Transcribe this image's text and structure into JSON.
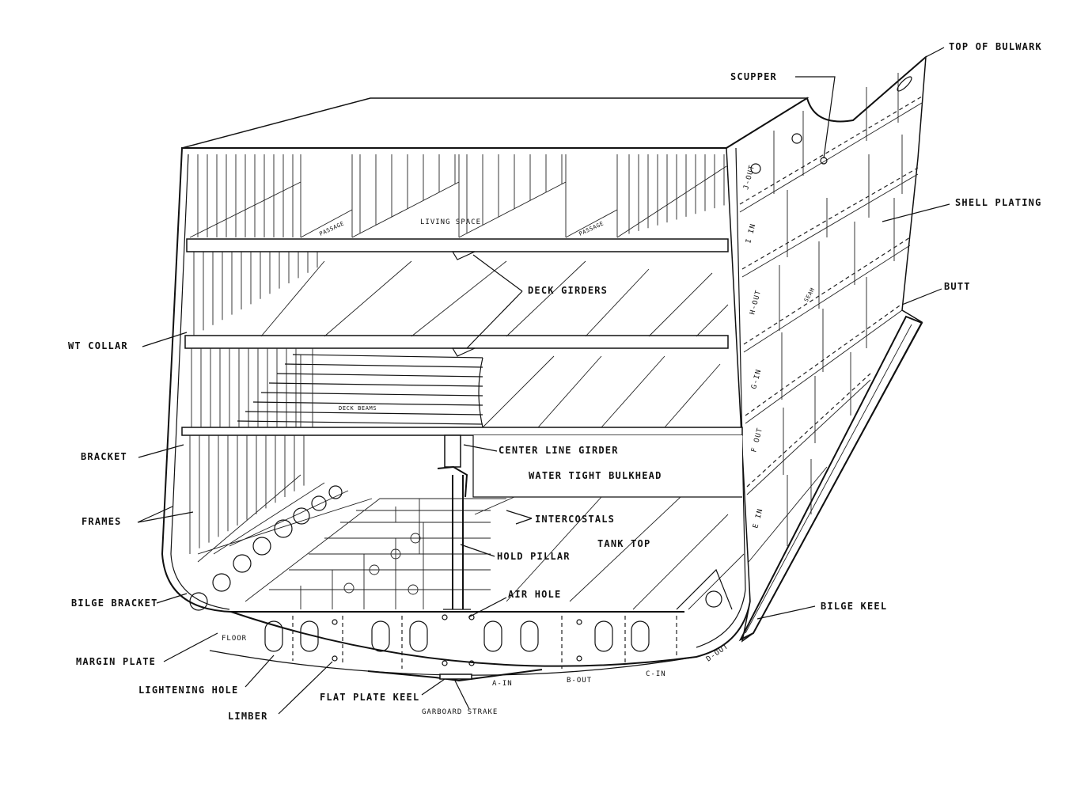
{
  "labels": {
    "top_of_bulwark": "TOP OF BULWARK",
    "scupper": "SCUPPER",
    "shell_plating": "SHELL PLATING",
    "butt": "BUTT",
    "deck_girders": "DECK GIRDERS",
    "wt_collar": "WT COLLAR",
    "bracket": "BRACKET",
    "center_line_girder": "CENTER LINE GIRDER",
    "water_tight_bulkhead": "WATER TIGHT BULKHEAD",
    "frames": "FRAMES",
    "intercostals": "INTERCOSTALS",
    "tank_top": "TANK TOP",
    "hold_pillar": "HOLD PILLAR",
    "air_hole": "AIR HOLE",
    "bilge_bracket": "BILGE BRACKET",
    "bilge_keel": "BILGE KEEL",
    "floor": "FLOOR",
    "margin_plate": "MARGIN PLATE",
    "lightening_hole": "LIGHTENING HOLE",
    "limber": "LIMBER",
    "flat_plate_keel": "FLAT PLATE KEEL",
    "garboard_strake": "GARBOARD STRAKE",
    "living_space": "LIVING SPACE",
    "deck_beams": "DECK BEAMS",
    "passage_left": "PASSAGE",
    "passage_right": "PASSAGE",
    "seam": "SEAM"
  },
  "strakes": {
    "a_in": "A-IN",
    "b_out": "B-OUT",
    "c_in": "C-IN",
    "d_out": "D-OUT",
    "e_in": "E IN",
    "f_out": "F OUT",
    "g_in": "G-IN",
    "h_out": "H-OUT",
    "i_in": "I IN",
    "j_out": "J-OUT"
  }
}
